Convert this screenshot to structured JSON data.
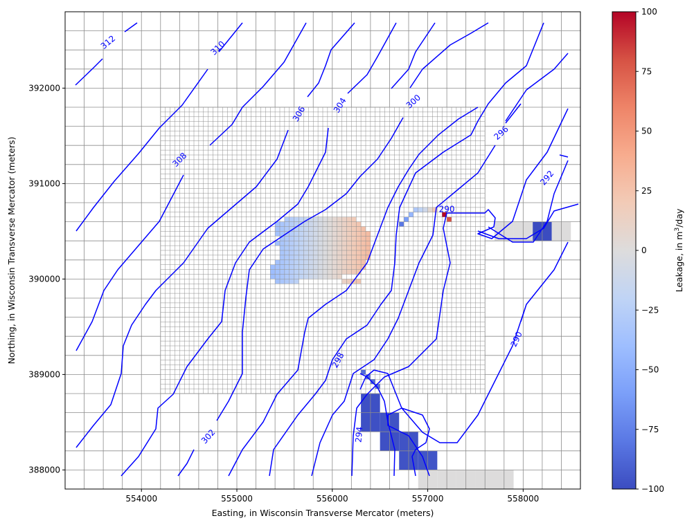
{
  "chart_data": {
    "type": "heatmap",
    "title": "",
    "xlabel": "Easting, in Wisconsin Transverse Mercator (meters)",
    "ylabel": "Northing, in Wisconsin Transverse Mercator (meters)",
    "xlim": [
      553200,
      558600
    ],
    "ylim": [
      387800,
      392800
    ],
    "x_ticks": [
      "554000",
      "555000",
      "556000",
      "557000",
      "558000"
    ],
    "y_ticks": [
      "388000",
      "389000",
      "390000",
      "391000",
      "392000"
    ],
    "grid": {
      "coarse_cell_size_m": 200,
      "refined_cell_size_m": 50,
      "refined_extent": {
        "x": [
          554200,
          557600
        ],
        "y": [
          388800,
          391800
        ]
      },
      "line_color": "#8c8c8c"
    },
    "colorbar": {
      "label": "Leakage, in m³/day",
      "label_parts": [
        "Leakage, in m",
        "3",
        "/day"
      ],
      "min": -100,
      "max": 100,
      "ticks": [
        "100",
        "75",
        "50",
        "25",
        "0",
        "−25",
        "−50",
        "−75",
        "−100"
      ],
      "colormap": "coolwarm",
      "colormap_stops": [
        "#3b4cc0",
        "#5a78e4",
        "#7b9ff9",
        "#9ebeff",
        "#c0d4f5",
        "#dddcdc",
        "#f2cbb7",
        "#f7ac8e",
        "#ee8468",
        "#d65244",
        "#b40426"
      ]
    },
    "leakage_cells": [
      {
        "type": "coarse",
        "x": 558200,
        "y": 390500,
        "value": -100
      },
      {
        "type": "coarse",
        "x": 557800,
        "y": 390500,
        "value": 0
      },
      {
        "type": "coarse",
        "x": 558000,
        "y": 390500,
        "value": 0
      },
      {
        "type": "coarse",
        "x": 558400,
        "y": 390500,
        "value": 0
      },
      {
        "type": "coarse",
        "x": 556400,
        "y": 388700,
        "value": -98
      },
      {
        "type": "coarse",
        "x": 556400,
        "y": 388500,
        "value": -98
      },
      {
        "type": "coarse",
        "x": 556600,
        "y": 388500,
        "value": -97
      },
      {
        "type": "coarse",
        "x": 556600,
        "y": 388300,
        "value": -98
      },
      {
        "type": "coarse",
        "x": 556800,
        "y": 388300,
        "value": -97
      },
      {
        "type": "coarse",
        "x": 556800,
        "y": 388100,
        "value": -97
      },
      {
        "type": "coarse",
        "x": 557000,
        "y": 388100,
        "value": -96
      },
      {
        "type": "coarse",
        "x": 557000,
        "y": 387900,
        "value": 0
      },
      {
        "type": "coarse",
        "x": 557200,
        "y": 387900,
        "value": 0
      },
      {
        "type": "coarse",
        "x": 557400,
        "y": 387900,
        "value": 0
      },
      {
        "type": "coarse",
        "x": 557600,
        "y": 387900,
        "value": 0
      },
      {
        "type": "coarse",
        "x": 557800,
        "y": 387900,
        "value": 0
      },
      {
        "type": "fine",
        "x": 556325,
        "y": 389025,
        "value": -85
      },
      {
        "type": "fine",
        "x": 556375,
        "y": 388975,
        "value": -85
      },
      {
        "type": "fine",
        "x": 556425,
        "y": 388925,
        "value": -85
      },
      {
        "type": "fine",
        "x": 556475,
        "y": 388875,
        "value": -85
      },
      {
        "type": "fine",
        "x": 556725,
        "y": 390575,
        "value": -80
      },
      {
        "type": "fine",
        "x": 556775,
        "y": 390625,
        "value": -60
      },
      {
        "type": "fine",
        "x": 556825,
        "y": 390675,
        "value": -45
      },
      {
        "type": "fine",
        "x": 556875,
        "y": 390725,
        "value": -30
      },
      {
        "type": "fine",
        "x": 556925,
        "y": 390725,
        "value": -20
      },
      {
        "type": "fine",
        "x": 556975,
        "y": 390725,
        "value": -10
      },
      {
        "type": "fine",
        "x": 557025,
        "y": 390725,
        "value": 5
      },
      {
        "type": "fine",
        "x": 557075,
        "y": 390725,
        "value": 20
      },
      {
        "type": "fine",
        "x": 557175,
        "y": 390675,
        "value": 100
      },
      {
        "type": "fine",
        "x": 557225,
        "y": 390625,
        "value": 80
      }
    ],
    "leakage_patch": {
      "description_values": "refined cells from x 555350 to 556400, y 389950 to 390650; leakage varies west to east from about -40 to +30",
      "west_value": -40,
      "east_value": 30
    },
    "contours": {
      "color": "#0000ff",
      "labels": [
        {
          "text": "312",
          "x": 553650,
          "y": 392480,
          "angle": -40
        },
        {
          "text": "310",
          "x": 554800,
          "y": 392420,
          "angle": -45
        },
        {
          "text": "308",
          "x": 554400,
          "y": 391250,
          "angle": -45
        },
        {
          "text": "306",
          "x": 555650,
          "y": 391730,
          "angle": -60
        },
        {
          "text": "304",
          "x": 556080,
          "y": 391820,
          "angle": -58
        },
        {
          "text": "302",
          "x": 554700,
          "y": 388350,
          "angle": -48
        },
        {
          "text": "300",
          "x": 556850,
          "y": 391860,
          "angle": -42
        },
        {
          "text": "298",
          "x": 556060,
          "y": 389150,
          "angle": -62
        },
        {
          "text": "296",
          "x": 557770,
          "y": 391530,
          "angle": -42
        },
        {
          "text": "294",
          "x": 556280,
          "y": 388370,
          "angle": -85
        },
        {
          "text": "292",
          "x": 558250,
          "y": 391060,
          "angle": -50
        },
        {
          "text": "290",
          "x": 557200,
          "y": 390730,
          "angle": 0
        },
        {
          "text": "290",
          "x": 557930,
          "y": 389370,
          "angle": -65
        }
      ]
    }
  }
}
